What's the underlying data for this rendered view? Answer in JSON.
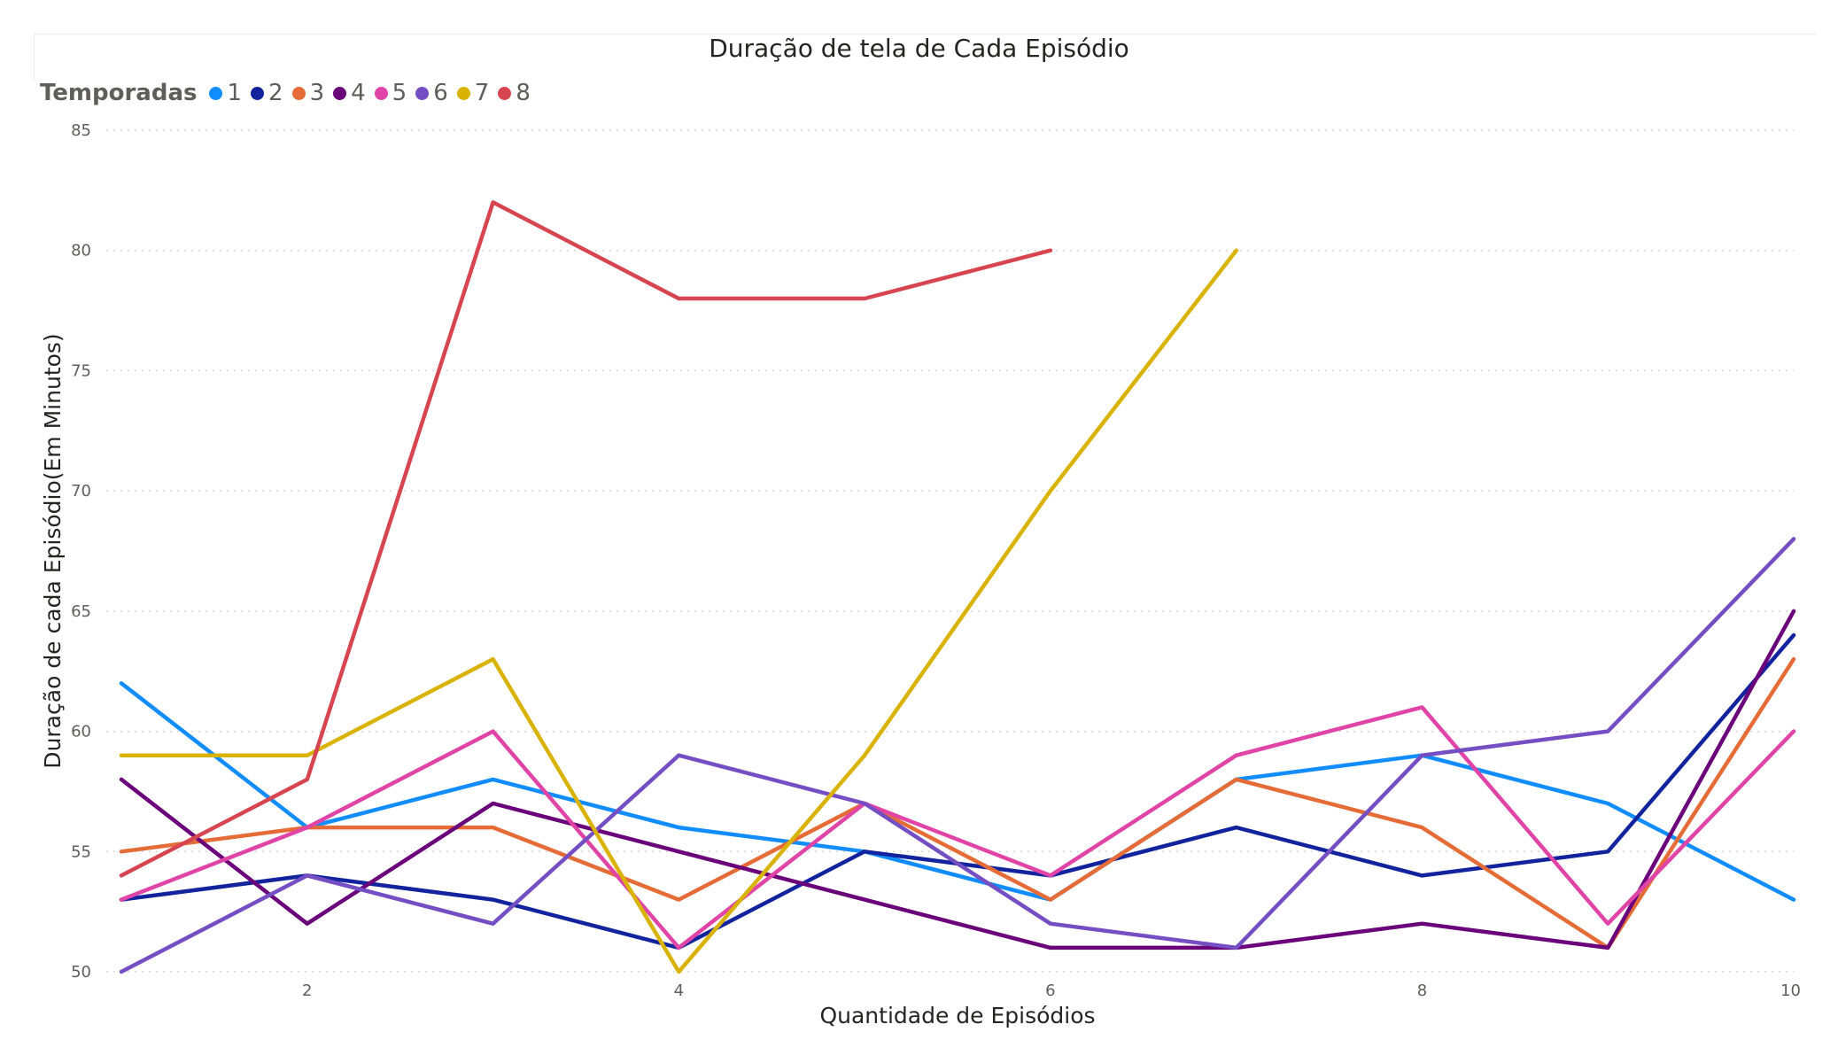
{
  "chart_data": {
    "type": "line",
    "title": "Duração de tela de Cada Episódio",
    "xlabel": "Quantidade de Episódios",
    "ylabel": "Duração de cada Episódio(Em Minutos)",
    "legend_title": "Temporadas",
    "legend_position": "top-left",
    "grid": true,
    "xlim": [
      1,
      10
    ],
    "ylim": [
      50,
      85
    ],
    "x_ticks": [
      2,
      4,
      6,
      8,
      10
    ],
    "y_ticks": [
      50,
      55,
      60,
      65,
      70,
      75,
      80,
      85
    ],
    "series": [
      {
        "name": "1",
        "color": "#118DFF",
        "x": [
          1,
          2,
          3,
          4,
          5,
          6,
          7,
          8,
          9,
          10
        ],
        "values": [
          62,
          56,
          58,
          56,
          55,
          53,
          58,
          59,
          57,
          53
        ]
      },
      {
        "name": "2",
        "color": "#12239E",
        "x": [
          1,
          2,
          3,
          4,
          5,
          6,
          7,
          8,
          9,
          10
        ],
        "values": [
          53,
          54,
          53,
          51,
          55,
          54,
          56,
          54,
          55,
          64
        ]
      },
      {
        "name": "3",
        "color": "#E66C37",
        "x": [
          1,
          2,
          3,
          4,
          5,
          6,
          7,
          8,
          9,
          10
        ],
        "values": [
          55,
          56,
          56,
          53,
          57,
          53,
          58,
          56,
          51,
          63
        ]
      },
      {
        "name": "4",
        "color": "#6B007B",
        "x": [
          1,
          2,
          3,
          4,
          5,
          6,
          7,
          8,
          9,
          10
        ],
        "values": [
          58,
          52,
          57,
          55,
          53,
          51,
          51,
          52,
          51,
          65
        ]
      },
      {
        "name": "5",
        "color": "#E044A7",
        "x": [
          1,
          2,
          3,
          4,
          5,
          6,
          7,
          8,
          9,
          10
        ],
        "values": [
          53,
          56,
          60,
          51,
          57,
          54,
          59,
          61,
          52,
          60
        ]
      },
      {
        "name": "6",
        "color": "#744EC2",
        "x": [
          1,
          2,
          3,
          4,
          5,
          6,
          7,
          8,
          9,
          10
        ],
        "values": [
          50,
          54,
          52,
          59,
          57,
          52,
          51,
          59,
          60,
          68
        ]
      },
      {
        "name": "7",
        "color": "#D9B300",
        "x": [
          1,
          2,
          3,
          4,
          5,
          6,
          7
        ],
        "values": [
          59,
          59,
          63,
          50,
          59,
          70,
          80
        ]
      },
      {
        "name": "8",
        "color": "#D64550",
        "x": [
          1,
          2,
          3,
          4,
          5,
          6
        ],
        "values": [
          54,
          58,
          82,
          78,
          78,
          80
        ]
      }
    ]
  }
}
